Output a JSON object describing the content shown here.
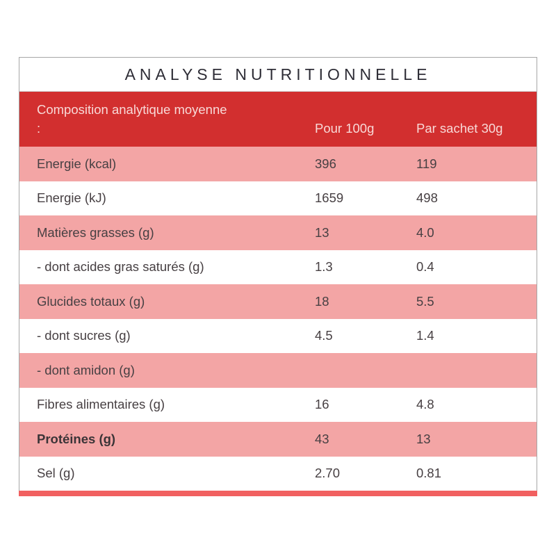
{
  "title": "ANALYSE NUTRITIONNELLE",
  "table": {
    "header": {
      "label_line1": "Composition analytique moyenne",
      "label_line2": ":",
      "col_per_100g": "Pour 100g",
      "col_per_sachet": "Par sachet 30g"
    },
    "rows": [
      {
        "label": "Energie (kcal)",
        "per_100g": "396",
        "per_sachet": "119",
        "shaded": true,
        "bold": false
      },
      {
        "label": "Energie (kJ)",
        "per_100g": "1659",
        "per_sachet": "498",
        "shaded": false,
        "bold": false
      },
      {
        "label": "Matières grasses (g)",
        "per_100g": "13",
        "per_sachet": "4.0",
        "shaded": true,
        "bold": false
      },
      {
        "label": "- dont acides gras saturés (g)",
        "per_100g": "1.3",
        "per_sachet": "0.4",
        "shaded": false,
        "bold": false
      },
      {
        "label": "Glucides totaux (g)",
        "per_100g": "18",
        "per_sachet": "5.5",
        "shaded": true,
        "bold": false
      },
      {
        "label": "- dont sucres (g)",
        "per_100g": "4.5",
        "per_sachet": "1.4",
        "shaded": false,
        "bold": false
      },
      {
        "label": "- dont amidon (g)",
        "per_100g": "",
        "per_sachet": "",
        "shaded": true,
        "bold": false
      },
      {
        "label": "Fibres alimentaires (g)",
        "per_100g": "16",
        "per_sachet": "4.8",
        "shaded": false,
        "bold": false
      },
      {
        "label": "Protéines (g)",
        "per_100g": "43",
        "per_sachet": "13",
        "shaded": true,
        "bold": true
      },
      {
        "label": "Sel (g)",
        "per_100g": "2.70",
        "per_sachet": "0.81",
        "shaded": false,
        "bold": false
      }
    ]
  },
  "colors": {
    "header_red": "#d22f2f",
    "row_pink": "#f3a5a5",
    "bottom_bar_salmon": "#f16060",
    "title_text": "#2e2d36",
    "row_text": "#474043",
    "header_text": "#f8d9d7",
    "outer_border": "#a6a6a6"
  }
}
